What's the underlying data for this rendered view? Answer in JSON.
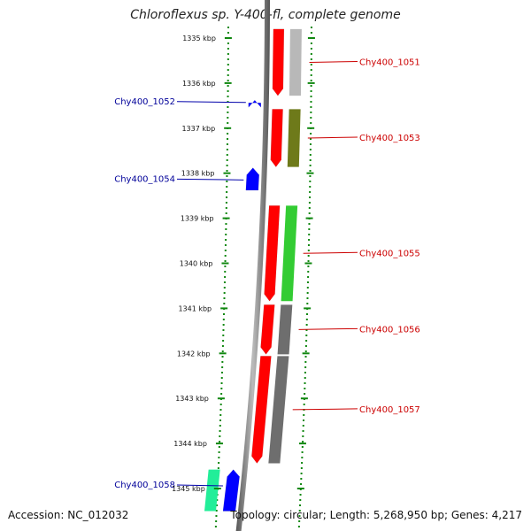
{
  "title": "Chloroflexus sp. Y-400-fl, complete genome",
  "footer": {
    "accession": "Accession: NC_012032",
    "info": "Topology: circular; Length: 5,268,950 bp; Genes: 4,217"
  },
  "ruler": [
    {
      "label": "1335 kbp",
      "pos": 1335
    },
    {
      "label": "1336 kbp",
      "pos": 1336
    },
    {
      "label": "1337 kbp",
      "pos": 1337
    },
    {
      "label": "1338 kbp",
      "pos": 1338
    },
    {
      "label": "1339 kbp",
      "pos": 1339
    },
    {
      "label": "1340 kbp",
      "pos": 1340
    },
    {
      "label": "1341 kbp",
      "pos": 1341
    },
    {
      "label": "1342 kbp",
      "pos": 1342
    },
    {
      "label": "1343 kbp",
      "pos": 1343
    },
    {
      "label": "1344 kbp",
      "pos": 1344
    },
    {
      "label": "1345 kbp",
      "pos": 1345
    }
  ],
  "genes": [
    {
      "name": "Chy400_1051",
      "strand": "+",
      "start": 1334.8,
      "end": 1336.28,
      "color": "#ff0000",
      "cog_color": "#b8b8b8"
    },
    {
      "name": "Chy400_1052",
      "strand": "-",
      "start": 1336.38,
      "end": 1336.44,
      "color": "#0000ff"
    },
    {
      "name": "Chy400_1053",
      "strand": "+",
      "start": 1336.58,
      "end": 1337.86,
      "color": "#ff0000",
      "cog_color": "#6e7a1a"
    },
    {
      "name": "Chy400_1054",
      "strand": "-",
      "start": 1337.88,
      "end": 1338.38,
      "color": "#0000ff"
    },
    {
      "name": "Chy400_1055",
      "strand": "+",
      "start": 1338.72,
      "end": 1340.84,
      "color": "#ff0000",
      "cog_color": "#33cc33"
    },
    {
      "name": "Chy400_1056",
      "strand": "+",
      "start": 1340.92,
      "end": 1342.02,
      "color": "#ff0000",
      "cog_color": "#6e6e6e"
    },
    {
      "name": "Chy400_1057",
      "strand": "+",
      "start": 1342.06,
      "end": 1344.44,
      "color": "#ff0000",
      "cog_color": "#6e6e6e"
    },
    {
      "name": "Chy400_1058",
      "strand": "-",
      "start": 1344.58,
      "end": 1345.5,
      "color": "#0000ff",
      "cog_color": "#22ee99"
    }
  ]
}
